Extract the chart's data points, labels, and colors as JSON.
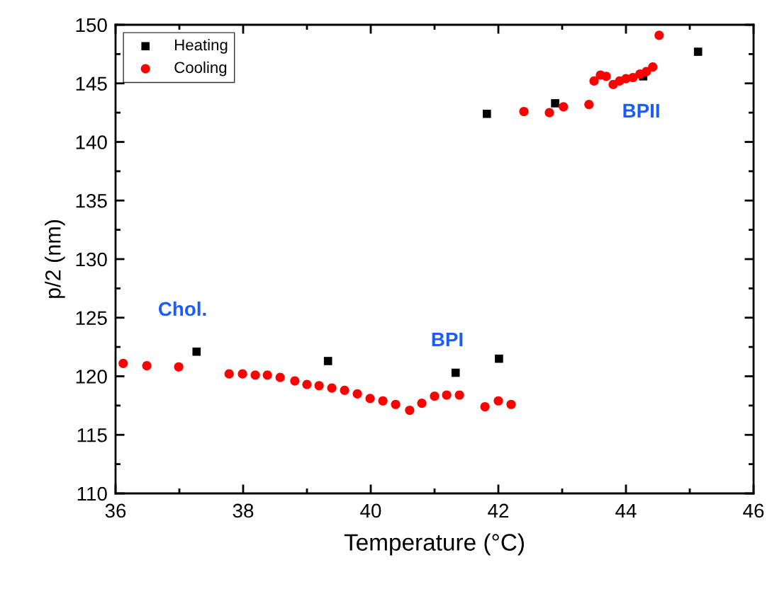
{
  "chart_data": {
    "type": "scatter",
    "xlabel": "Temperature (°C)",
    "ylabel": "p/2 (nm)",
    "xlim": [
      36,
      46
    ],
    "xticks": [
      36,
      38,
      40,
      42,
      44,
      46
    ],
    "ylim": [
      110,
      150
    ],
    "yticks": [
      110,
      115,
      120,
      125,
      130,
      135,
      140,
      145,
      150
    ],
    "legend": "top left",
    "grid": false,
    "series": [
      {
        "name": "Heating",
        "color": "#000000",
        "marker": "square",
        "x": [
          37.27,
          39.33,
          41.33,
          42.01,
          41.82,
          42.89,
          44.27,
          45.13
        ],
        "values": [
          122.1,
          121.3,
          120.3,
          121.5,
          142.4,
          143.3,
          145.6,
          147.7
        ]
      },
      {
        "name": "Cooling",
        "color": "#ff0000",
        "marker": "circle",
        "x": [
          36.12,
          36.49,
          36.99,
          37.78,
          37.99,
          38.19,
          38.38,
          38.58,
          38.81,
          39.0,
          39.19,
          39.39,
          39.59,
          39.79,
          39.99,
          40.19,
          40.39,
          40.61,
          40.8,
          41.0,
          41.19,
          41.39,
          41.79,
          42.0,
          42.2,
          42.4,
          42.8,
          43.02,
          43.42,
          43.5,
          43.6,
          43.69,
          43.8,
          43.9,
          44.0,
          44.11,
          44.22,
          44.32,
          44.42,
          44.52
        ],
        "values": [
          121.1,
          120.9,
          120.8,
          120.2,
          120.2,
          120.1,
          120.1,
          119.9,
          119.6,
          119.3,
          119.2,
          119.0,
          118.8,
          118.5,
          118.1,
          117.9,
          117.6,
          117.1,
          117.7,
          118.3,
          118.4,
          118.4,
          117.4,
          117.9,
          117.6,
          142.6,
          142.5,
          143.0,
          143.2,
          145.2,
          145.7,
          145.6,
          144.9,
          145.2,
          145.4,
          145.5,
          145.8,
          146.0,
          146.4,
          149.1
        ]
      }
    ],
    "annotations": [
      "Chol.",
      "BPI",
      "BPII"
    ]
  }
}
